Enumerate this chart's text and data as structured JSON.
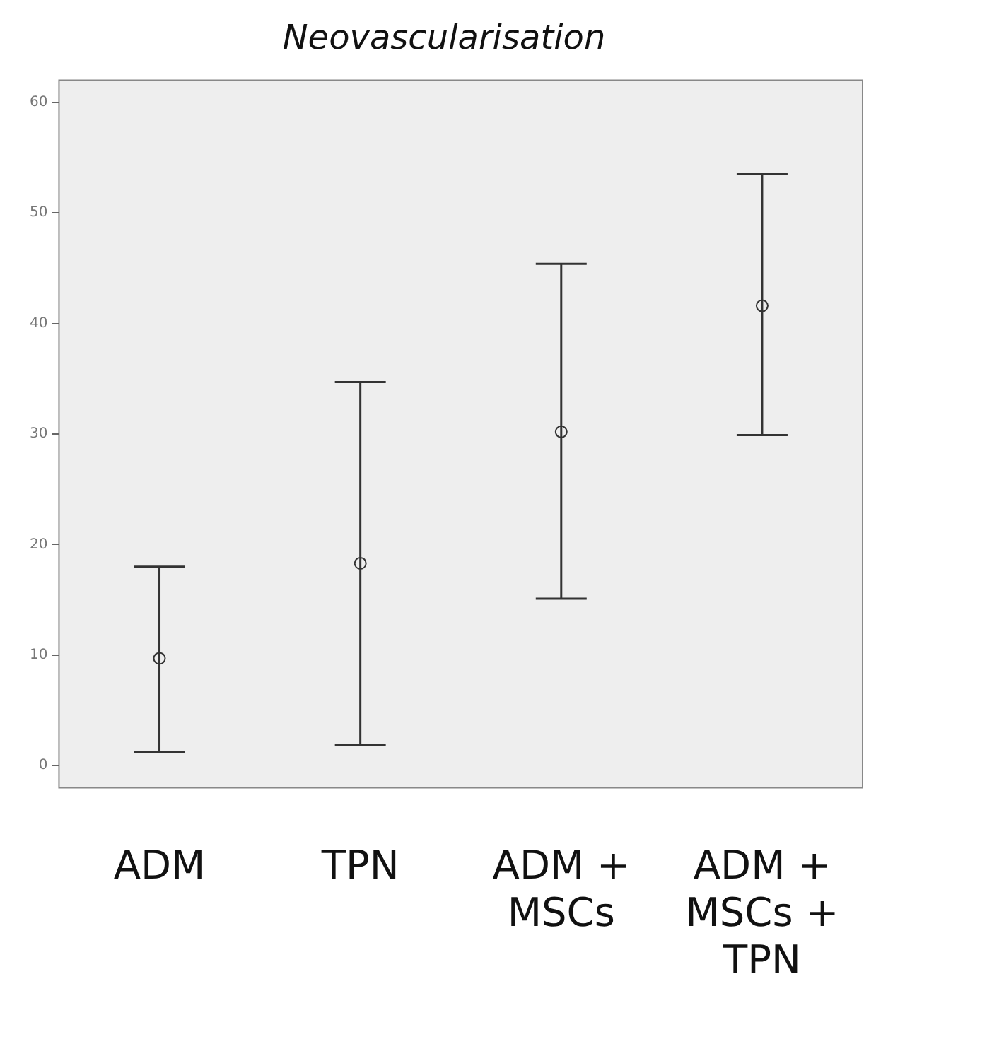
{
  "chart_data": {
    "type": "scatter",
    "title": "Neovascularisation",
    "categories": [
      "ADM",
      "TPN",
      "ADM + MSCs",
      "ADM + MSCs + TPN"
    ],
    "series": [
      {
        "color": "#333333",
        "values": [
          9.7,
          18.3,
          30.2,
          41.6
        ],
        "errors": [
          [
            1.2,
            18.0
          ],
          [
            1.9,
            34.7
          ],
          [
            15.1,
            45.4
          ],
          [
            29.9,
            53.5
          ]
        ]
      }
    ],
    "ylim": [
      -2,
      62
    ],
    "yticks": [
      0,
      10,
      20,
      30,
      40,
      50,
      60
    ],
    "grid": false,
    "legend": false,
    "marker": "circle"
  }
}
